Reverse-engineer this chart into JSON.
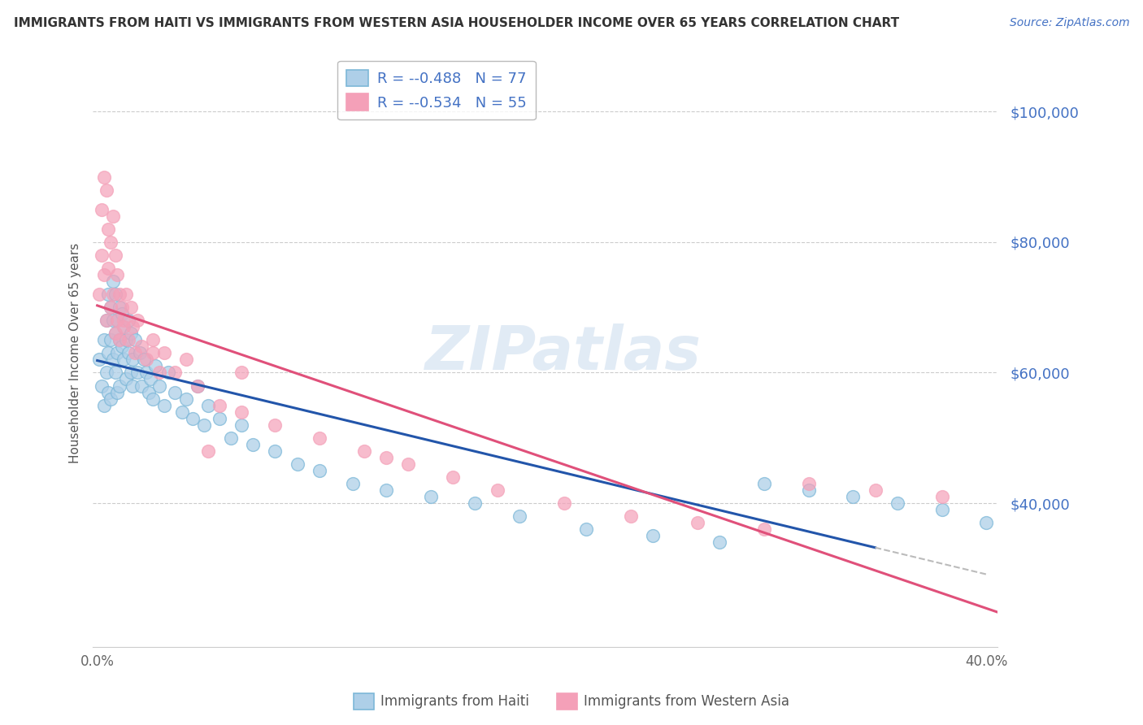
{
  "title": "IMMIGRANTS FROM HAITI VS IMMIGRANTS FROM WESTERN ASIA HOUSEHOLDER INCOME OVER 65 YEARS CORRELATION CHART",
  "source": "Source: ZipAtlas.com",
  "ylabel": "Householder Income Over 65 years",
  "watermark": "ZIPatlas",
  "haiti_color": "#7db8d8",
  "haiti_color_fill": "#aecfe8",
  "western_asia_color": "#f4a0b8",
  "western_asia_color_fill": "#f4a0b8",
  "regression_haiti_color": "#2255aa",
  "regression_western_asia_color": "#e0507a",
  "regression_dashed_color": "#bbbbbb",
  "legend_R_haiti": "-0.488",
  "legend_N_haiti": "77",
  "legend_R_western": "-0.534",
  "legend_N_western": "55",
  "ytick_labels": [
    "$40,000",
    "$60,000",
    "$80,000",
    "$100,000"
  ],
  "ytick_values": [
    40000,
    60000,
    80000,
    100000
  ],
  "ymin": 18000,
  "ymax": 108000,
  "xmin": -0.002,
  "xmax": 0.405,
  "title_color": "#333333",
  "source_color": "#4472c4",
  "ytick_color": "#4472c4",
  "xtick_left": "0.0%",
  "xtick_right": "40.0%",
  "bottom_label_haiti": "Immigrants from Haiti",
  "bottom_label_western": "Immigrants from Western Asia",
  "haiti_scatter_x": [
    0.001,
    0.002,
    0.003,
    0.003,
    0.004,
    0.004,
    0.005,
    0.005,
    0.005,
    0.006,
    0.006,
    0.006,
    0.007,
    0.007,
    0.007,
    0.008,
    0.008,
    0.008,
    0.009,
    0.009,
    0.009,
    0.01,
    0.01,
    0.01,
    0.011,
    0.011,
    0.012,
    0.012,
    0.013,
    0.013,
    0.014,
    0.014,
    0.015,
    0.015,
    0.016,
    0.016,
    0.017,
    0.018,
    0.019,
    0.02,
    0.021,
    0.022,
    0.023,
    0.024,
    0.025,
    0.026,
    0.028,
    0.03,
    0.032,
    0.035,
    0.038,
    0.04,
    0.043,
    0.045,
    0.048,
    0.05,
    0.055,
    0.06,
    0.065,
    0.07,
    0.08,
    0.09,
    0.1,
    0.115,
    0.13,
    0.15,
    0.17,
    0.19,
    0.22,
    0.25,
    0.28,
    0.3,
    0.32,
    0.34,
    0.36,
    0.38,
    0.4
  ],
  "haiti_scatter_y": [
    62000,
    58000,
    55000,
    65000,
    60000,
    68000,
    63000,
    72000,
    57000,
    65000,
    70000,
    56000,
    62000,
    68000,
    74000,
    60000,
    66000,
    72000,
    63000,
    68000,
    57000,
    65000,
    70000,
    58000,
    64000,
    69000,
    62000,
    67000,
    59000,
    65000,
    63000,
    68000,
    60000,
    66000,
    62000,
    58000,
    65000,
    60000,
    63000,
    58000,
    62000,
    60000,
    57000,
    59000,
    56000,
    61000,
    58000,
    55000,
    60000,
    57000,
    54000,
    56000,
    53000,
    58000,
    52000,
    55000,
    53000,
    50000,
    52000,
    49000,
    48000,
    46000,
    45000,
    43000,
    42000,
    41000,
    40000,
    38000,
    36000,
    35000,
    34000,
    43000,
    42000,
    41000,
    40000,
    39000,
    37000
  ],
  "western_scatter_x": [
    0.001,
    0.002,
    0.002,
    0.003,
    0.003,
    0.004,
    0.004,
    0.005,
    0.005,
    0.006,
    0.006,
    0.007,
    0.007,
    0.008,
    0.008,
    0.009,
    0.009,
    0.01,
    0.01,
    0.011,
    0.012,
    0.013,
    0.014,
    0.015,
    0.016,
    0.017,
    0.018,
    0.02,
    0.022,
    0.025,
    0.028,
    0.03,
    0.035,
    0.04,
    0.045,
    0.055,
    0.065,
    0.08,
    0.1,
    0.12,
    0.14,
    0.16,
    0.18,
    0.21,
    0.24,
    0.27,
    0.3,
    0.32,
    0.35,
    0.38,
    0.13,
    0.05,
    0.012,
    0.025,
    0.065
  ],
  "western_scatter_y": [
    72000,
    85000,
    78000,
    90000,
    75000,
    88000,
    68000,
    82000,
    76000,
    80000,
    70000,
    84000,
    72000,
    78000,
    66000,
    75000,
    68000,
    72000,
    65000,
    70000,
    68000,
    72000,
    65000,
    70000,
    67000,
    63000,
    68000,
    64000,
    62000,
    65000,
    60000,
    63000,
    60000,
    62000,
    58000,
    55000,
    54000,
    52000,
    50000,
    48000,
    46000,
    44000,
    42000,
    40000,
    38000,
    37000,
    36000,
    43000,
    42000,
    41000,
    47000,
    48000,
    67000,
    63000,
    60000
  ]
}
